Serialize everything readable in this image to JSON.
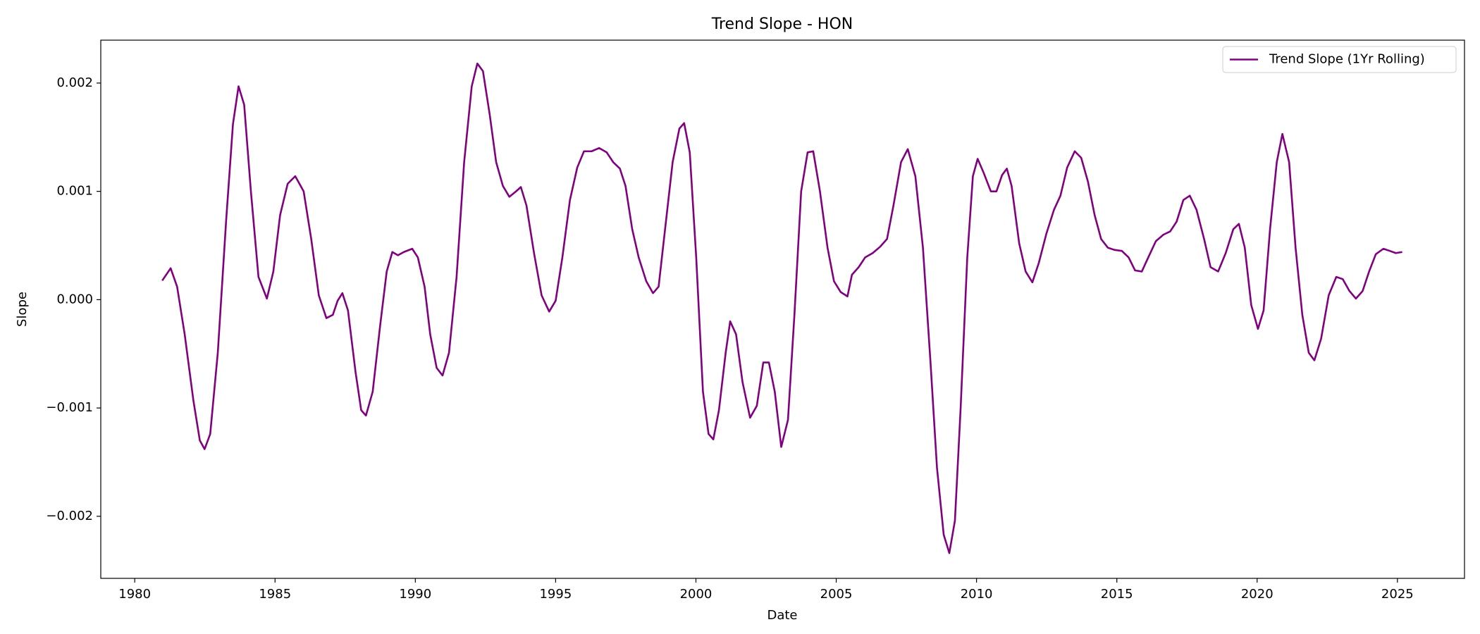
{
  "chart_data": {
    "type": "line",
    "title": "Trend Slope - HON",
    "xlabel": "Date",
    "ylabel": "Slope",
    "x": [
      1980.98,
      1981.28,
      1981.51,
      1981.78,
      1982.09,
      1982.32,
      1982.49,
      1982.69,
      1982.96,
      1983.26,
      1983.5,
      1983.7,
      1983.9,
      1984.14,
      1984.41,
      1984.71,
      1984.94,
      1985.18,
      1985.45,
      1985.72,
      1986.02,
      1986.29,
      1986.56,
      1986.83,
      1987.06,
      1987.23,
      1987.4,
      1987.6,
      1987.87,
      1988.07,
      1988.24,
      1988.48,
      1988.75,
      1988.98,
      1989.18,
      1989.38,
      1989.59,
      1989.89,
      1990.09,
      1990.33,
      1990.53,
      1990.76,
      1990.97,
      1991.2,
      1991.47,
      1991.74,
      1992.01,
      1992.21,
      1992.41,
      1992.65,
      1992.88,
      1993.12,
      1993.35,
      1993.59,
      1993.76,
      1993.96,
      1994.23,
      1994.5,
      1994.77,
      1995.0,
      1995.24,
      1995.51,
      1995.77,
      1996.01,
      1996.28,
      1996.55,
      1996.82,
      1997.05,
      1997.29,
      1997.49,
      1997.73,
      1997.96,
      1998.23,
      1998.47,
      1998.67,
      1998.9,
      1999.17,
      1999.41,
      1999.58,
      1999.78,
      2000.01,
      2000.25,
      2000.45,
      2000.62,
      2000.82,
      2001.06,
      2001.22,
      2001.43,
      2001.66,
      2001.93,
      2002.17,
      2002.4,
      2002.6,
      2002.81,
      2003.04,
      2003.28,
      2003.51,
      2003.75,
      2003.98,
      2004.18,
      2004.42,
      2004.69,
      2004.92,
      2005.16,
      2005.4,
      2005.56,
      2005.8,
      2006.03,
      2006.3,
      2006.57,
      2006.81,
      2007.04,
      2007.31,
      2007.55,
      2007.82,
      2008.09,
      2008.36,
      2008.59,
      2008.83,
      2009.03,
      2009.23,
      2009.43,
      2009.67,
      2009.87,
      2010.04,
      2010.24,
      2010.51,
      2010.71,
      2010.91,
      2011.08,
      2011.25,
      2011.52,
      2011.75,
      2011.99,
      2012.22,
      2012.49,
      2012.76,
      2012.99,
      2013.23,
      2013.5,
      2013.73,
      2013.97,
      2014.21,
      2014.44,
      2014.68,
      2014.91,
      2015.18,
      2015.42,
      2015.65,
      2015.89,
      2016.12,
      2016.39,
      2016.66,
      2016.9,
      2017.13,
      2017.37,
      2017.6,
      2017.84,
      2018.11,
      2018.34,
      2018.61,
      2018.88,
      2019.15,
      2019.35,
      2019.56,
      2019.79,
      2020.03,
      2020.23,
      2020.46,
      2020.7,
      2020.9,
      2021.14,
      2021.37,
      2021.61,
      2021.84,
      2022.04,
      2022.28,
      2022.55,
      2022.82,
      2023.05,
      2023.29,
      2023.52,
      2023.76,
      2023.99,
      2024.23,
      2024.5,
      2024.73,
      2024.94,
      2025.17
    ],
    "series": [
      {
        "name": "Trend Slope (1Yr Rolling)",
        "color": "#800080",
        "values": [
          0.000176,
          0.00029,
          0.00012,
          -0.00032,
          -0.00093,
          -0.0013,
          -0.00138,
          -0.00124,
          -0.00049,
          0.00074,
          0.00162,
          0.00197,
          0.0018,
          0.001,
          0.00021,
          1e-05,
          0.00026,
          0.00078,
          0.00107,
          0.00114,
          0.001,
          0.00056,
          4e-05,
          -0.00017,
          -0.00014,
          -1e-05,
          6e-05,
          -0.0001,
          -0.00067,
          -0.00102,
          -0.00107,
          -0.00085,
          -0.00023,
          0.00026,
          0.00044,
          0.00041,
          0.00044,
          0.00047,
          0.00039,
          0.00012,
          -0.00032,
          -0.00063,
          -0.0007,
          -0.00049,
          0.00021,
          0.00127,
          0.00197,
          0.00218,
          0.00211,
          0.00171,
          0.00127,
          0.00105,
          0.00095,
          0.001,
          0.00104,
          0.00087,
          0.00043,
          4e-05,
          -0.00011,
          -1e-05,
          0.00039,
          0.00092,
          0.00122,
          0.00137,
          0.00137,
          0.0014,
          0.00136,
          0.00127,
          0.00121,
          0.00105,
          0.00065,
          0.00039,
          0.00017,
          6e-05,
          0.00012,
          0.00065,
          0.00127,
          0.00158,
          0.00163,
          0.00136,
          0.00039,
          -0.00085,
          -0.00124,
          -0.00129,
          -0.00102,
          -0.00049,
          -0.0002,
          -0.00032,
          -0.00076,
          -0.00109,
          -0.00098,
          -0.00058,
          -0.00058,
          -0.00085,
          -0.00136,
          -0.00111,
          -0.00014,
          0.001,
          0.00136,
          0.00137,
          0.001,
          0.00048,
          0.00017,
          7e-05,
          3e-05,
          0.00023,
          0.0003,
          0.00039,
          0.00043,
          0.00049,
          0.00056,
          0.00087,
          0.00127,
          0.00139,
          0.00114,
          0.00048,
          -0.00058,
          -0.00155,
          -0.00217,
          -0.00234,
          -0.00204,
          -0.00102,
          0.00039,
          0.00114,
          0.0013,
          0.00118,
          0.001,
          0.001,
          0.00115,
          0.00121,
          0.00105,
          0.00052,
          0.00026,
          0.00016,
          0.00034,
          0.00061,
          0.00083,
          0.00096,
          0.00122,
          0.00137,
          0.00131,
          0.00109,
          0.00078,
          0.00056,
          0.00048,
          0.00046,
          0.00045,
          0.00039,
          0.00027,
          0.00026,
          0.00039,
          0.00054,
          0.0006,
          0.00063,
          0.00072,
          0.00092,
          0.00096,
          0.00083,
          0.00056,
          0.0003,
          0.00026,
          0.00043,
          0.00065,
          0.0007,
          0.00048,
          -5e-05,
          -0.00027,
          -0.0001,
          0.00065,
          0.00127,
          0.00153,
          0.00127,
          0.00048,
          -0.00014,
          -0.00049,
          -0.00056,
          -0.00036,
          4e-05,
          0.00021,
          0.00019,
          8e-05,
          1e-05,
          8e-05,
          0.00026,
          0.00042,
          0.00047,
          0.00045,
          0.00043,
          0.00044
        ]
      }
    ],
    "xlim": [
      1978.79,
      2027.39
    ],
    "xticks": [
      1980,
      1985,
      1990,
      1995,
      2000,
      2005,
      2010,
      2015,
      2020,
      2025
    ],
    "ylim": [
      -0.002573,
      0.002396
    ],
    "yticks": [
      {
        "value": -0.002,
        "label": "−0.002"
      },
      {
        "value": -0.001,
        "label": "−0.001"
      },
      {
        "value": 0,
        "label": "0.000"
      },
      0.001,
      0.002
    ],
    "legend": "upper right"
  }
}
